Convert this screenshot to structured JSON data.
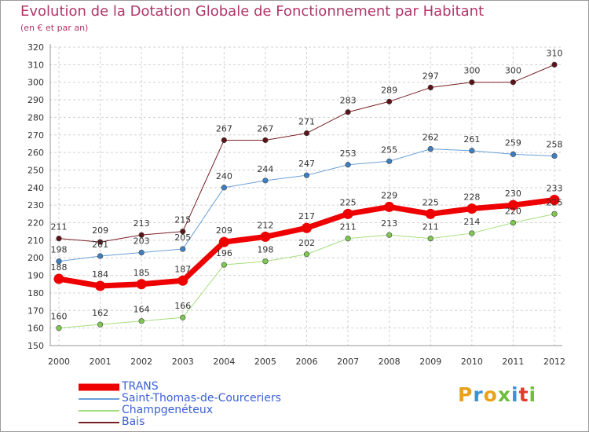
{
  "title": "Evolution de la Dotation Globale de Fonctionnement par Habitant",
  "subtitle": "(en € et par an)",
  "logo": {
    "text": "Proxiti",
    "colors": [
      "#e8a219",
      "#3d8fd6",
      "#e8a219",
      "#6cbf3a",
      "#3d8fd6",
      "#e63a2b",
      "#6cbf3a"
    ]
  },
  "chart_data": {
    "type": "line",
    "title": "Evolution de la Dotation Globale de Fonctionnement par Habitant",
    "subtitle": "(en € et par an)",
    "xlabel": "",
    "ylabel": "",
    "ylim": [
      150,
      320
    ],
    "yticks": [
      150,
      160,
      170,
      180,
      190,
      200,
      210,
      220,
      230,
      240,
      250,
      260,
      270,
      280,
      290,
      300,
      310,
      320
    ],
    "grid": true,
    "legend_position": "bottom-left",
    "x": [
      "2000",
      "2001",
      "2002",
      "2003",
      "2004",
      "2005",
      "2006",
      "2007",
      "2008",
      "2009",
      "2010",
      "2011",
      "2012"
    ],
    "series": [
      {
        "name": "Bais",
        "color": "#7a1f24",
        "marker": "#5a1418",
        "width": 1,
        "values": [
          211,
          209,
          213,
          215,
          267,
          267,
          271,
          283,
          289,
          297,
          300,
          300,
          310
        ]
      },
      {
        "name": "Saint-Thomas-de-Courceriers",
        "color": "#6aa0d6",
        "marker": "#3d7fc2",
        "width": 1,
        "values": [
          198,
          201,
          203,
          205,
          240,
          244,
          247,
          253,
          255,
          262,
          261,
          259,
          258
        ]
      },
      {
        "name": "Champgenéteux",
        "color": "#a6de7e",
        "marker": "#7ec850",
        "width": 1,
        "values": [
          160,
          162,
          164,
          166,
          196,
          198,
          202,
          211,
          213,
          211,
          214,
          220,
          225
        ]
      },
      {
        "name": "TRANS",
        "color": "#ee0000",
        "marker": "#ee0000",
        "width": 7,
        "values": [
          188,
          184,
          185,
          187,
          209,
          212,
          217,
          225,
          229,
          225,
          228,
          230,
          233
        ]
      }
    ],
    "legend": [
      "TRANS",
      "Saint-Thomas-de-Courceriers",
      "Champgenéteux",
      "Bais"
    ]
  }
}
